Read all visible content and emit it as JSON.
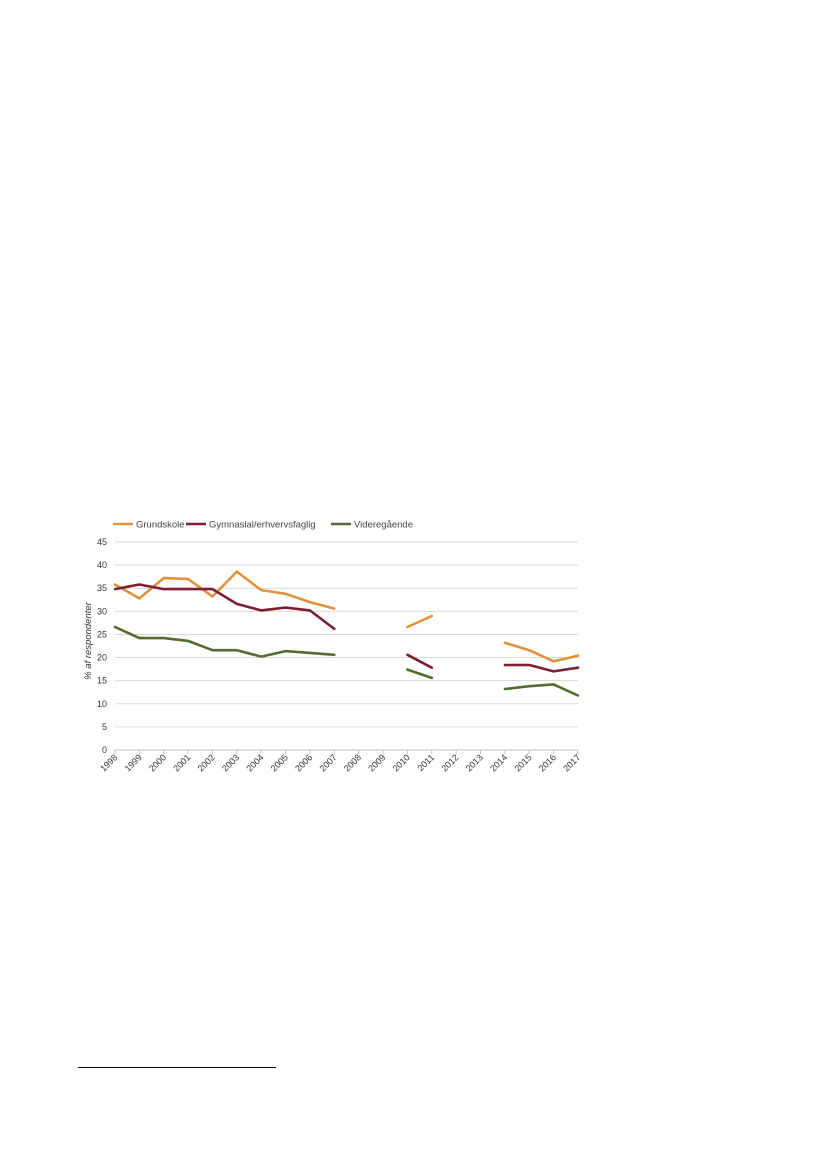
{
  "chart_data": {
    "type": "line",
    "title": "",
    "xlabel": "",
    "ylabel": "% af respondenter",
    "ylim": [
      0,
      45
    ],
    "yticks": [
      0,
      5,
      10,
      15,
      20,
      25,
      30,
      35,
      40,
      45
    ],
    "grid": true,
    "legend_position": "top-left",
    "categories": [
      "1998",
      "1999",
      "2000",
      "2001",
      "2002",
      "2003",
      "2004",
      "2005",
      "2006",
      "2007",
      "2008",
      "2009",
      "2010",
      "2011",
      "2012",
      "2013",
      "2014",
      "2015",
      "2016",
      "2017"
    ],
    "series": [
      {
        "name": "Grundskole",
        "color": "#e0923a",
        "values": [
          35.8,
          32.8,
          37.2,
          37.0,
          33.2,
          38.6,
          34.6,
          33.8,
          32.0,
          30.6,
          null,
          null,
          26.6,
          29.0,
          null,
          null,
          23.2,
          21.6,
          19.2,
          20.4
        ]
      },
      {
        "name": "Gymnasial/erhvervsfaglig",
        "color": "#7f1f34",
        "values": [
          34.8,
          35.8,
          34.8,
          34.8,
          34.8,
          31.6,
          30.2,
          30.8,
          30.2,
          26.2,
          null,
          null,
          20.6,
          17.8,
          null,
          null,
          18.4,
          18.4,
          17.0,
          17.8
        ]
      },
      {
        "name": "Videregående",
        "color": "#556b2f",
        "values": [
          26.6,
          24.2,
          24.2,
          23.6,
          21.6,
          21.6,
          20.2,
          21.4,
          21.0,
          20.6,
          null,
          null,
          17.4,
          15.6,
          null,
          null,
          13.2,
          13.8,
          14.2,
          11.8
        ]
      }
    ]
  }
}
